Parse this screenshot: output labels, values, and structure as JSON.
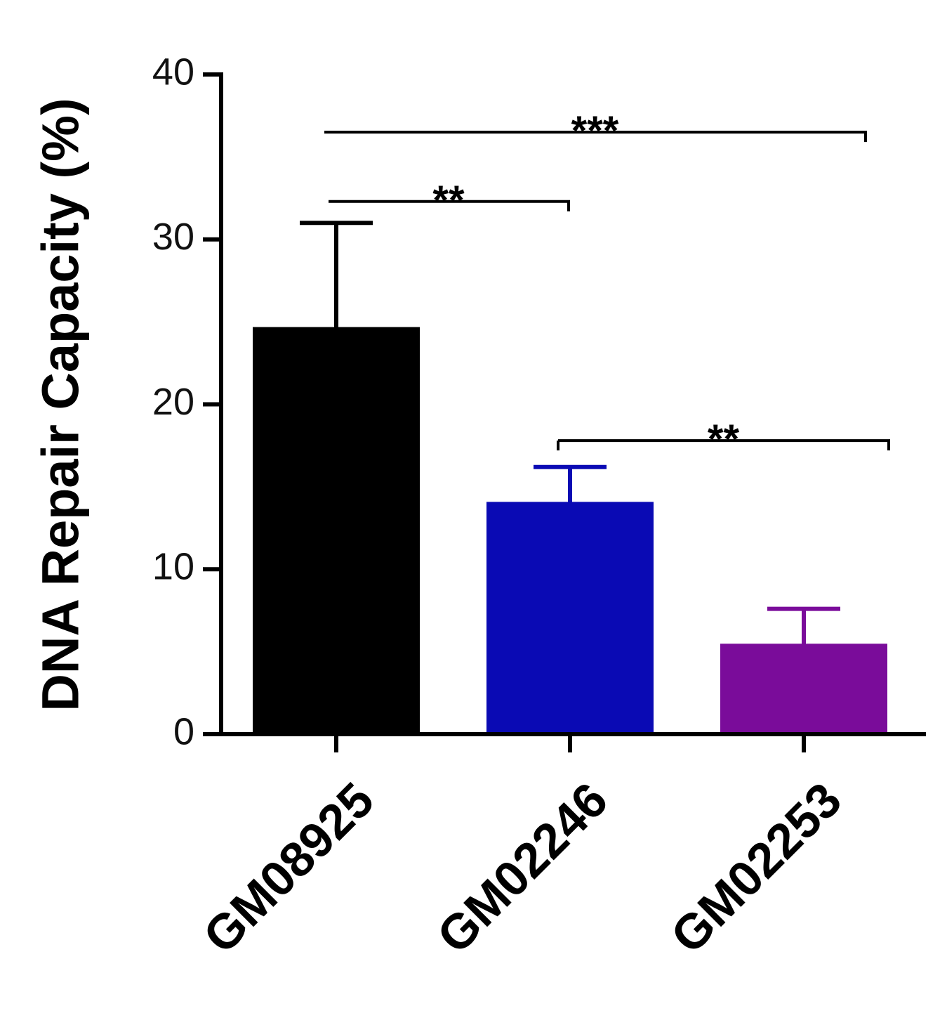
{
  "chart_data": {
    "type": "bar",
    "title": "",
    "xlabel": "",
    "ylabel": "DNA Repair Capacity (%)",
    "ylim": [
      0,
      40
    ],
    "yticks": [
      0,
      10,
      20,
      30,
      40
    ],
    "grid": false,
    "categories": [
      "GM08925",
      "GM02246",
      "GM02253"
    ],
    "values": [
      24.6,
      14.0,
      5.4
    ],
    "errors": [
      6.4,
      2.2,
      2.2
    ],
    "colors": [
      "#000000",
      "#0a0ab4",
      "#7a0c9a"
    ],
    "significance": [
      {
        "from": 0,
        "to": 1,
        "label": "**",
        "y": 32.3
      },
      {
        "from": 0,
        "to": 2,
        "label": "***",
        "y": 36.5
      },
      {
        "from": 1,
        "to": 2,
        "label": "**",
        "y": 17.8
      }
    ]
  }
}
